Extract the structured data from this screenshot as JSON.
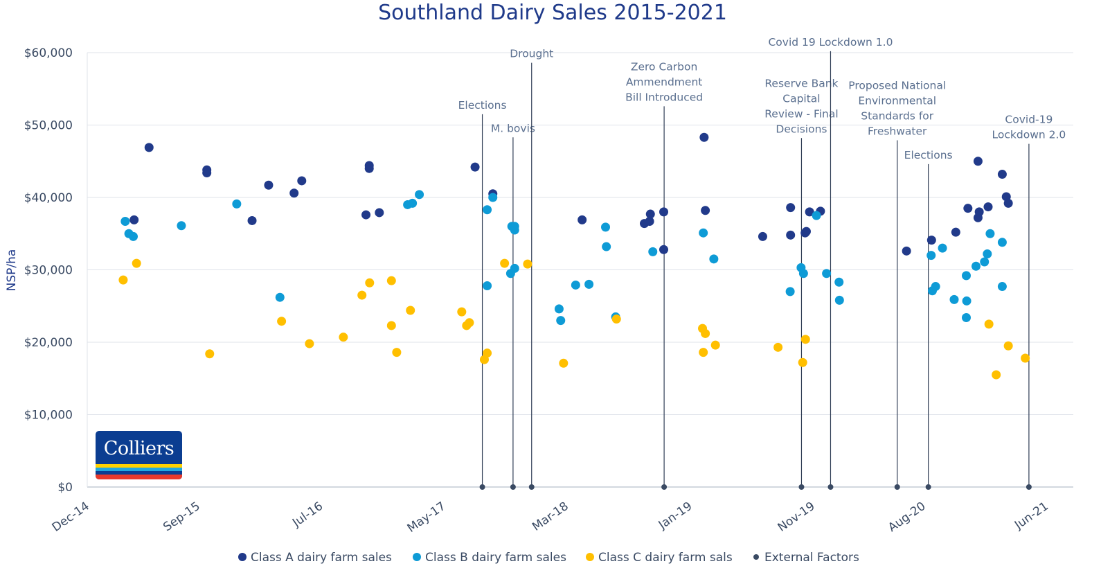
{
  "chart_data": {
    "type": "scatter",
    "title": "Southland Dairy Sales 2015-2021",
    "xlabel": "",
    "ylabel": "NSP/ha",
    "x_unit": "days since 1 Dec 2014",
    "xlim": [
      0,
      2375
    ],
    "ylim": [
      0,
      60000
    ],
    "grid": true,
    "y_ticks": [
      {
        "value": 0,
        "label": "$0"
      },
      {
        "value": 10000,
        "label": "$10,000"
      },
      {
        "value": 20000,
        "label": "$20,000"
      },
      {
        "value": 30000,
        "label": "$30,000"
      },
      {
        "value": 40000,
        "label": "$40,000"
      },
      {
        "value": 50000,
        "label": "$50,000"
      },
      {
        "value": 60000,
        "label": "$60,000"
      }
    ],
    "x_ticks": [
      {
        "value": 0,
        "label": "Dec-14"
      },
      {
        "value": 274,
        "label": "Sep-15"
      },
      {
        "value": 578,
        "label": "Jul-16"
      },
      {
        "value": 882,
        "label": "May-17"
      },
      {
        "value": 1186,
        "label": "Mar-18"
      },
      {
        "value": 1492,
        "label": "Jan-19"
      },
      {
        "value": 1796,
        "label": "Nov-19"
      },
      {
        "value": 2070,
        "label": "Aug-20"
      },
      {
        "value": 2374,
        "label": "Jun-21"
      }
    ],
    "legend_position": "bottom",
    "series": [
      {
        "name": "Class A dairy farm sales",
        "color": "#213a8a",
        "points": [
          [
            116,
            36900
          ],
          [
            153,
            46900
          ],
          [
            296,
            43400
          ],
          [
            296,
            43800
          ],
          [
            408,
            36800
          ],
          [
            449,
            41700
          ],
          [
            512,
            40600
          ],
          [
            531,
            42300
          ],
          [
            690,
            37600
          ],
          [
            698,
            44000
          ],
          [
            698,
            44400
          ],
          [
            723,
            37900
          ],
          [
            960,
            44200
          ],
          [
            1004,
            40500
          ],
          [
            1225,
            36900
          ],
          [
            1379,
            36400
          ],
          [
            1392,
            36700
          ],
          [
            1394,
            37700
          ],
          [
            1427,
            38000
          ],
          [
            1427,
            32800
          ],
          [
            1527,
            48300
          ],
          [
            1530,
            38200
          ],
          [
            1672,
            34600
          ],
          [
            1741,
            34800
          ],
          [
            1741,
            38600
          ],
          [
            1777,
            35100
          ],
          [
            1780,
            35300
          ],
          [
            1815,
            38100
          ],
          [
            1788,
            38000
          ],
          [
            2028,
            32600
          ],
          [
            2090,
            34100
          ],
          [
            2150,
            35200
          ],
          [
            2180,
            38500
          ],
          [
            2205,
            37200
          ],
          [
            2208,
            38000
          ],
          [
            2205,
            45000
          ],
          [
            2230,
            38700
          ],
          [
            2265,
            43200
          ],
          [
            2275,
            40100
          ],
          [
            2280,
            39200
          ]
        ]
      },
      {
        "name": "Class B dairy farm sales",
        "color": "#0e9bd6",
        "points": [
          [
            94,
            36700
          ],
          [
            103,
            35000
          ],
          [
            114,
            34600
          ],
          [
            233,
            36100
          ],
          [
            370,
            39100
          ],
          [
            477,
            26200
          ],
          [
            793,
            39000
          ],
          [
            805,
            39200
          ],
          [
            822,
            40400
          ],
          [
            990,
            38300
          ],
          [
            990,
            27800
          ],
          [
            1004,
            40000
          ],
          [
            1051,
            36000
          ],
          [
            1058,
            36000
          ],
          [
            1058,
            35500
          ],
          [
            1048,
            29500
          ],
          [
            1058,
            30200
          ],
          [
            1168,
            24600
          ],
          [
            1172,
            23000
          ],
          [
            1209,
            27900
          ],
          [
            1242,
            28000
          ],
          [
            1283,
            35900
          ],
          [
            1285,
            33200
          ],
          [
            1308,
            23500
          ],
          [
            1400,
            32500
          ],
          [
            1525,
            35100
          ],
          [
            1551,
            31500
          ],
          [
            1740,
            27000
          ],
          [
            1767,
            30300
          ],
          [
            1773,
            29500
          ],
          [
            1805,
            37500
          ],
          [
            1830,
            29500
          ],
          [
            1861,
            28300
          ],
          [
            1862,
            25800
          ],
          [
            2089,
            32000
          ],
          [
            2092,
            27100
          ],
          [
            2100,
            27700
          ],
          [
            2117,
            33000
          ],
          [
            2146,
            25900
          ],
          [
            2176,
            29200
          ],
          [
            2177,
            25700
          ],
          [
            2176,
            23400
          ],
          [
            2200,
            30500
          ],
          [
            2221,
            31100
          ],
          [
            2228,
            32200
          ],
          [
            2235,
            35000
          ],
          [
            2265,
            33800
          ],
          [
            2265,
            27700
          ]
        ]
      },
      {
        "name": "Class C dairy farm sals",
        "color": "#ffbf00",
        "points": [
          [
            89,
            28600
          ],
          [
            122,
            30900
          ],
          [
            303,
            18400
          ],
          [
            481,
            22900
          ],
          [
            550,
            19800
          ],
          [
            634,
            20700
          ],
          [
            680,
            26500
          ],
          [
            699,
            28200
          ],
          [
            753,
            28500
          ],
          [
            753,
            22300
          ],
          [
            766,
            18600
          ],
          [
            800,
            24400
          ],
          [
            927,
            24200
          ],
          [
            939,
            22300
          ],
          [
            946,
            22700
          ],
          [
            983,
            17600
          ],
          [
            990,
            18500
          ],
          [
            1033,
            30900
          ],
          [
            1090,
            30800
          ],
          [
            1179,
            17100
          ],
          [
            1310,
            23200
          ],
          [
            1523,
            21900
          ],
          [
            1530,
            21200
          ],
          [
            1525,
            18600
          ],
          [
            1555,
            19600
          ],
          [
            1710,
            19300
          ],
          [
            1771,
            17200
          ],
          [
            1778,
            20400
          ],
          [
            2232,
            22500
          ],
          [
            2250,
            15500
          ],
          [
            2280,
            19500
          ],
          [
            2322,
            17800
          ]
        ]
      }
    ],
    "external_factors": {
      "name": "External Factors",
      "color": "#3a4a63",
      "events": [
        {
          "x": 978,
          "label_lines": [
            "Elections"
          ],
          "top": 51500
        },
        {
          "x": 1054,
          "label_lines": [
            "M. bovis"
          ],
          "top": 48300
        },
        {
          "x": 1100,
          "label_lines": [
            "Drought"
          ],
          "top": 58600
        },
        {
          "x": 1428,
          "label_lines": [
            "Zero Carbon",
            "Ammendment",
            "Bill Introduced"
          ],
          "top": 52600
        },
        {
          "x": 1768,
          "label_lines": [
            "Reserve Bank",
            "Capital",
            "Review - Final",
            "Decisions"
          ],
          "top": 48200
        },
        {
          "x": 1840,
          "label_lines": [
            "Covid 19 Lockdown 1.0"
          ],
          "top": 60200
        },
        {
          "x": 2005,
          "label_lines": [
            "Proposed National",
            "Environmental",
            "Standards for",
            "Freshwater"
          ],
          "top": 47900
        },
        {
          "x": 2082,
          "label_lines": [
            "Elections"
          ],
          "top": 44600
        },
        {
          "x": 2331,
          "label_lines": [
            "Covid-19",
            "Lockdown 2.0"
          ],
          "top": 47400
        }
      ]
    }
  },
  "logo": {
    "text": "Colliers"
  }
}
